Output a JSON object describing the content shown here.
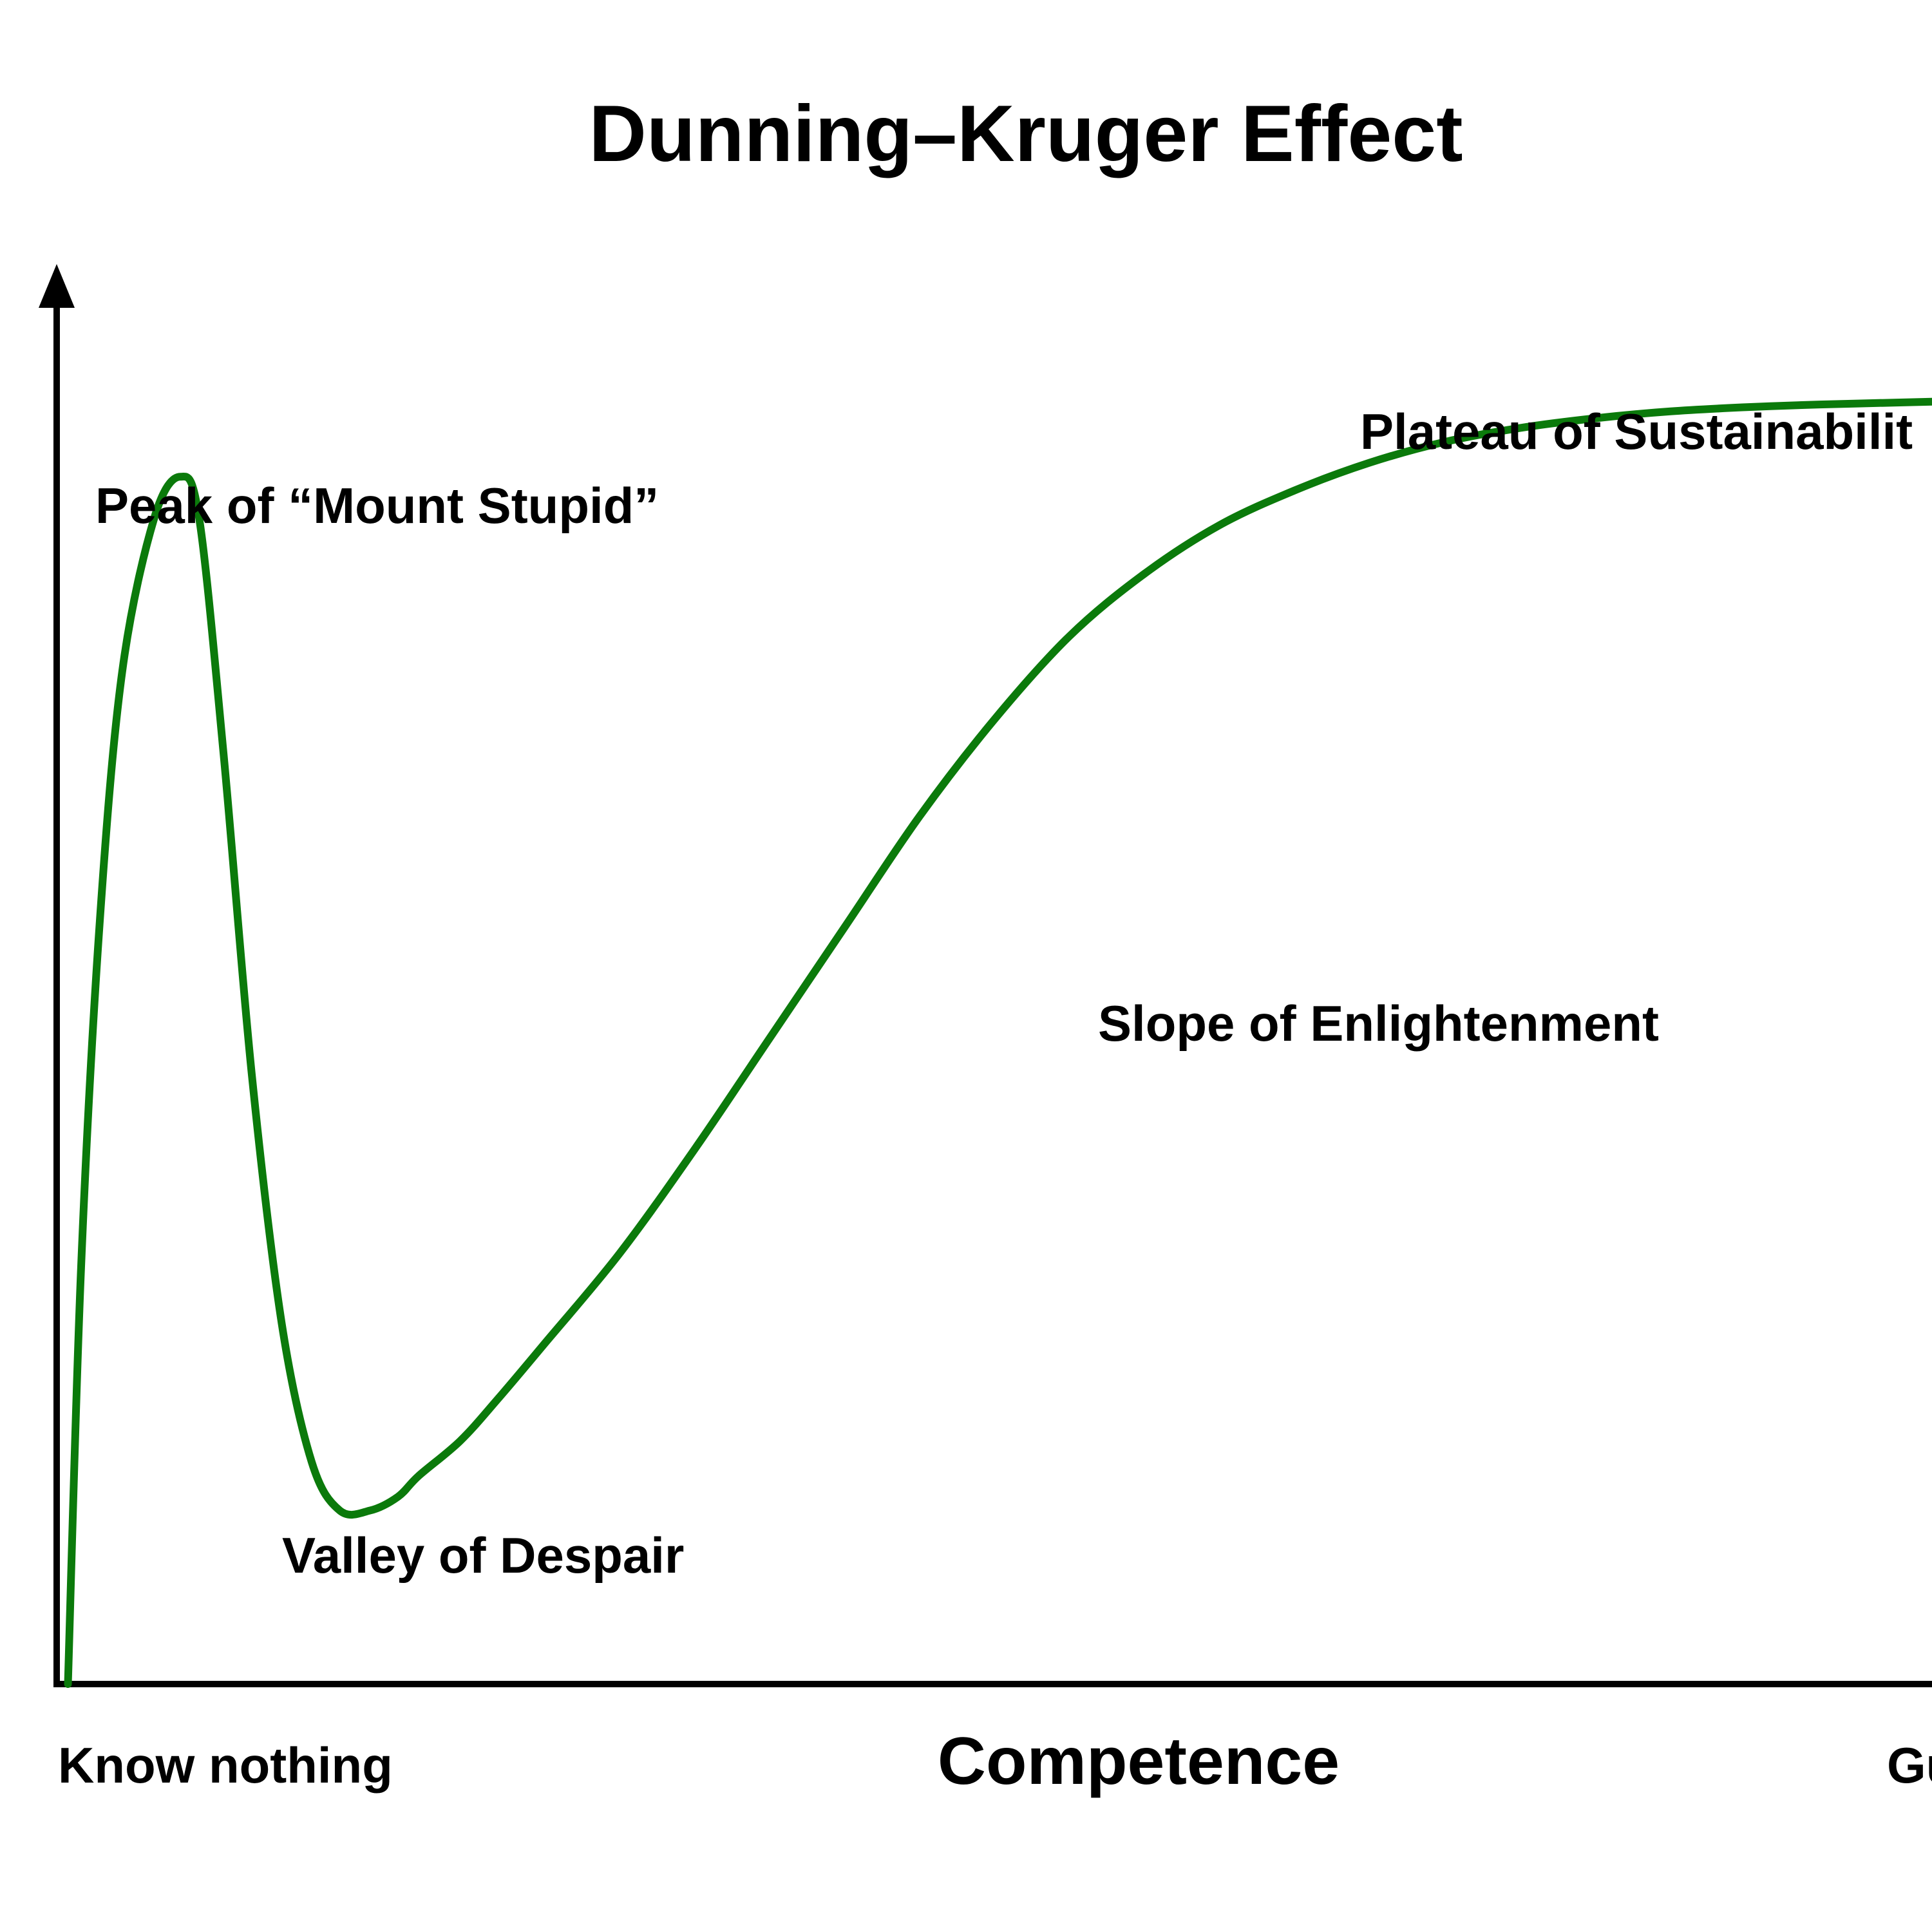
{
  "chart_data": {
    "type": "line",
    "title": "Dunning–Kruger Effect",
    "xlabel": "Competence",
    "ylabel": "",
    "grid": false,
    "legend": "none",
    "xlim": [
      0,
      100
    ],
    "ylim": [
      0,
      100
    ],
    "x_tick_labels": [
      "Know nothing",
      "Gu"
    ],
    "annotations": [
      {
        "text": "Peak of “Mount Stupid”",
        "anchor": "above the first peak"
      },
      {
        "text": "Valley of Despair",
        "anchor": "below the valley"
      },
      {
        "text": "Slope of Enlightenment",
        "anchor": "right of the rising slope"
      },
      {
        "text": "Plateau of Sustainabilit",
        "anchor": "above the plateau"
      }
    ],
    "colors": {
      "line": "#0b7a0b",
      "axis": "#000000"
    },
    "series": [
      {
        "x": [
          0.6,
          1.3,
          2.3,
          3.5,
          5.2,
          6.6,
          7.6,
          8.9,
          10.4,
          12.0,
          13.6,
          15.1,
          16.7,
          18.2,
          19.3,
          21.5,
          23.5,
          26.0,
          30.0,
          34.0,
          38.0,
          42.0,
          46.0,
          50.0,
          54.0,
          58.0,
          62.0,
          66.0,
          70.0,
          74.0,
          78.0,
          82.0,
          86.0,
          90.0,
          94.0,
          97.0,
          100.0
        ],
        "y": [
          0,
          30,
          55,
          73,
          84,
          87,
          84,
          67,
          44,
          26,
          16,
          12.5,
          12.5,
          13.5,
          15,
          17.5,
          20.5,
          24.5,
          31,
          38.5,
          46.5,
          54.5,
          62.5,
          69.5,
          75.5,
          80,
          83.5,
          86,
          88,
          89.5,
          90.5,
          91.2,
          91.7,
          92.0,
          92.2,
          92.3,
          92.4
        ]
      }
    ]
  }
}
